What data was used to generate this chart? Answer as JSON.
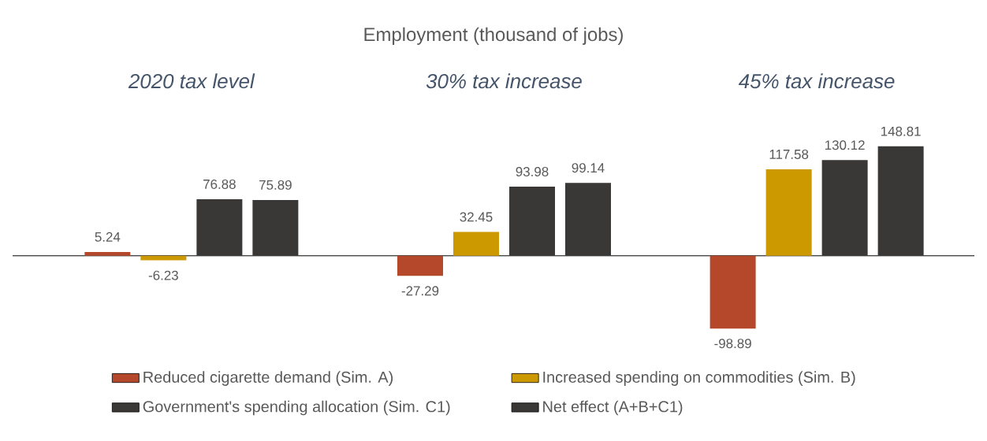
{
  "chart_data": {
    "type": "bar",
    "title": "Employment (thousand of jobs)",
    "categories": [
      "2020 tax level",
      "30% tax increase",
      "45% tax increase"
    ],
    "series": [
      {
        "name": "Reduced cigarette demand (Sim. A)",
        "color": "#b5472a",
        "values": [
          5.24,
          -27.29,
          -98.89
        ]
      },
      {
        "name": "Increased spending on commodities (Sim. B)",
        "color": "#cc9900",
        "values": [
          -6.23,
          32.45,
          117.58
        ]
      },
      {
        "name": "Government's spending allocation (Sim. C1)",
        "color": "#3a3836",
        "values": [
          76.88,
          93.98,
          130.12
        ]
      },
      {
        "name": "Net effect (A+B+C1)",
        "color": "#3a3836",
        "values": [
          75.89,
          99.14,
          148.81
        ]
      }
    ],
    "data_labels": true,
    "legend": "bottom"
  }
}
